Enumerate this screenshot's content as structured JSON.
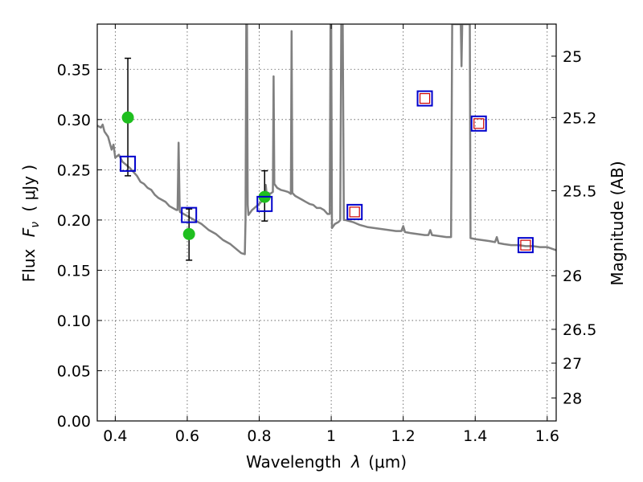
{
  "chart_data": {
    "type": "scatter",
    "xlabel_prefix": "Wavelength",
    "xlabel_symbol": "λ",
    "xlabel_unit": "(μm)",
    "ylabel_prefix": "Flux",
    "ylabel_symbol": "F",
    "ylabel_subscript": "ν",
    "ylabel_unit": "( μJy )",
    "y2label": "Magnitude (AB)",
    "xlim": [
      0.35,
      1.625
    ],
    "ylim": [
      0.0,
      0.395
    ],
    "grid": true,
    "x_ticks": [
      0.4,
      0.6,
      0.8,
      1.0,
      1.2,
      1.4,
      1.6
    ],
    "x_tick_labels": [
      "0.4",
      "0.6",
      "0.8",
      "1",
      "1.2",
      "1.4",
      "1.6"
    ],
    "y_ticks": [
      0.0,
      0.05,
      0.1,
      0.15,
      0.2,
      0.25,
      0.3,
      0.35
    ],
    "y_tick_labels": [
      "0.00",
      "0.05",
      "0.10",
      "0.15",
      "0.20",
      "0.25",
      "0.30",
      "0.35"
    ],
    "y2_ticks": [
      {
        "mag": 25,
        "label": "25"
      },
      {
        "mag": 25.2,
        "label": "25.2"
      },
      {
        "mag": 25.5,
        "label": "25.5"
      },
      {
        "mag": 26,
        "label": "26"
      },
      {
        "mag": 26.5,
        "label": "26.5"
      },
      {
        "mag": 27,
        "label": "27"
      },
      {
        "mag": 28,
        "label": "28"
      }
    ],
    "series": [
      {
        "kind": "line",
        "color": "#808080",
        "points": [
          [
            0.35,
            0.294
          ],
          [
            0.36,
            0.292
          ],
          [
            0.365,
            0.295
          ],
          [
            0.37,
            0.288
          ],
          [
            0.38,
            0.283
          ],
          [
            0.39,
            0.27
          ],
          [
            0.395,
            0.275
          ],
          [
            0.4,
            0.262
          ],
          [
            0.41,
            0.265
          ],
          [
            0.42,
            0.258
          ],
          [
            0.43,
            0.255
          ],
          [
            0.44,
            0.252
          ],
          [
            0.45,
            0.248
          ],
          [
            0.46,
            0.244
          ],
          [
            0.47,
            0.238
          ],
          [
            0.48,
            0.236
          ],
          [
            0.49,
            0.232
          ],
          [
            0.5,
            0.23
          ],
          [
            0.51,
            0.225
          ],
          [
            0.52,
            0.222
          ],
          [
            0.53,
            0.22
          ],
          [
            0.54,
            0.218
          ],
          [
            0.55,
            0.214
          ],
          [
            0.56,
            0.212
          ],
          [
            0.57,
            0.21
          ],
          [
            0.573,
            0.21
          ],
          [
            0.576,
            0.277
          ],
          [
            0.579,
            0.21
          ],
          [
            0.58,
            0.208
          ],
          [
            0.59,
            0.206
          ],
          [
            0.6,
            0.204
          ],
          [
            0.62,
            0.2
          ],
          [
            0.64,
            0.196
          ],
          [
            0.66,
            0.19
          ],
          [
            0.68,
            0.186
          ],
          [
            0.7,
            0.18
          ],
          [
            0.72,
            0.176
          ],
          [
            0.74,
            0.17
          ],
          [
            0.75,
            0.167
          ],
          [
            0.76,
            0.166
          ],
          [
            0.762,
            0.2
          ],
          [
            0.764,
            0.395
          ],
          [
            0.766,
            0.395
          ],
          [
            0.768,
            0.215
          ],
          [
            0.77,
            0.205
          ],
          [
            0.78,
            0.21
          ],
          [
            0.79,
            0.213
          ],
          [
            0.8,
            0.216
          ],
          [
            0.81,
            0.22
          ],
          [
            0.815,
            0.224
          ],
          [
            0.818,
            0.235
          ],
          [
            0.82,
            0.228
          ],
          [
            0.83,
            0.226
          ],
          [
            0.838,
            0.228
          ],
          [
            0.84,
            0.343
          ],
          [
            0.842,
            0.236
          ],
          [
            0.85,
            0.232
          ],
          [
            0.86,
            0.23
          ],
          [
            0.87,
            0.229
          ],
          [
            0.88,
            0.228
          ],
          [
            0.888,
            0.226
          ],
          [
            0.89,
            0.388
          ],
          [
            0.892,
            0.227
          ],
          [
            0.9,
            0.224
          ],
          [
            0.91,
            0.222
          ],
          [
            0.92,
            0.22
          ],
          [
            0.93,
            0.218
          ],
          [
            0.94,
            0.216
          ],
          [
            0.95,
            0.215
          ],
          [
            0.96,
            0.212
          ],
          [
            0.97,
            0.212
          ],
          [
            0.98,
            0.21
          ],
          [
            0.99,
            0.206
          ],
          [
            0.996,
            0.206
          ],
          [
            0.998,
            0.395
          ],
          [
            1.0,
            0.395
          ],
          [
            1.002,
            0.192
          ],
          [
            1.01,
            0.196
          ],
          [
            1.02,
            0.198
          ],
          [
            1.025,
            0.2
          ],
          [
            1.028,
            0.395
          ],
          [
            1.032,
            0.395
          ],
          [
            1.035,
            0.2
          ],
          [
            1.04,
            0.2
          ],
          [
            1.06,
            0.198
          ],
          [
            1.08,
            0.195
          ],
          [
            1.1,
            0.193
          ],
          [
            1.12,
            0.192
          ],
          [
            1.14,
            0.191
          ],
          [
            1.16,
            0.19
          ],
          [
            1.18,
            0.189
          ],
          [
            1.195,
            0.189
          ],
          [
            1.2,
            0.194
          ],
          [
            1.205,
            0.188
          ],
          [
            1.22,
            0.187
          ],
          [
            1.24,
            0.186
          ],
          [
            1.26,
            0.185
          ],
          [
            1.27,
            0.185
          ],
          [
            1.275,
            0.19
          ],
          [
            1.28,
            0.185
          ],
          [
            1.3,
            0.184
          ],
          [
            1.32,
            0.183
          ],
          [
            1.333,
            0.183
          ],
          [
            1.336,
            0.395
          ],
          [
            1.36,
            0.395
          ],
          [
            1.362,
            0.353
          ],
          [
            1.364,
            0.395
          ],
          [
            1.385,
            0.395
          ],
          [
            1.387,
            0.182
          ],
          [
            1.4,
            0.181
          ],
          [
            1.42,
            0.18
          ],
          [
            1.44,
            0.179
          ],
          [
            1.455,
            0.178
          ],
          [
            1.46,
            0.183
          ],
          [
            1.465,
            0.177
          ],
          [
            1.48,
            0.176
          ],
          [
            1.5,
            0.175
          ],
          [
            1.52,
            0.175
          ],
          [
            1.54,
            0.174
          ],
          [
            1.56,
            0.174
          ],
          [
            1.58,
            0.173
          ],
          [
            1.6,
            0.173
          ],
          [
            1.625,
            0.17
          ]
        ]
      },
      {
        "kind": "points",
        "marker": "circle",
        "color": "#1fbf1f",
        "points": [
          {
            "x": 0.435,
            "y": 0.302,
            "yerr_low": 0.244,
            "yerr_high": 0.361
          },
          {
            "x": 0.605,
            "y": 0.186,
            "yerr_low": 0.16,
            "yerr_high": 0.211
          },
          {
            "x": 0.815,
            "y": 0.223,
            "yerr_low": 0.199,
            "yerr_high": 0.249
          }
        ]
      },
      {
        "kind": "points",
        "marker": "square",
        "color": "#0000cc",
        "points": [
          {
            "x": 0.435,
            "y": 0.256
          },
          {
            "x": 0.605,
            "y": 0.205
          },
          {
            "x": 0.815,
            "y": 0.216
          },
          {
            "x": 1.065,
            "y": 0.208
          },
          {
            "x": 1.26,
            "y": 0.321
          },
          {
            "x": 1.41,
            "y": 0.296
          },
          {
            "x": 1.54,
            "y": 0.175
          }
        ]
      },
      {
        "kind": "points",
        "marker": "small-square",
        "color": "#cc0000",
        "points": [
          {
            "x": 1.065,
            "y": 0.208
          },
          {
            "x": 1.26,
            "y": 0.321
          },
          {
            "x": 1.41,
            "y": 0.296
          },
          {
            "x": 1.54,
            "y": 0.175
          }
        ]
      }
    ]
  }
}
